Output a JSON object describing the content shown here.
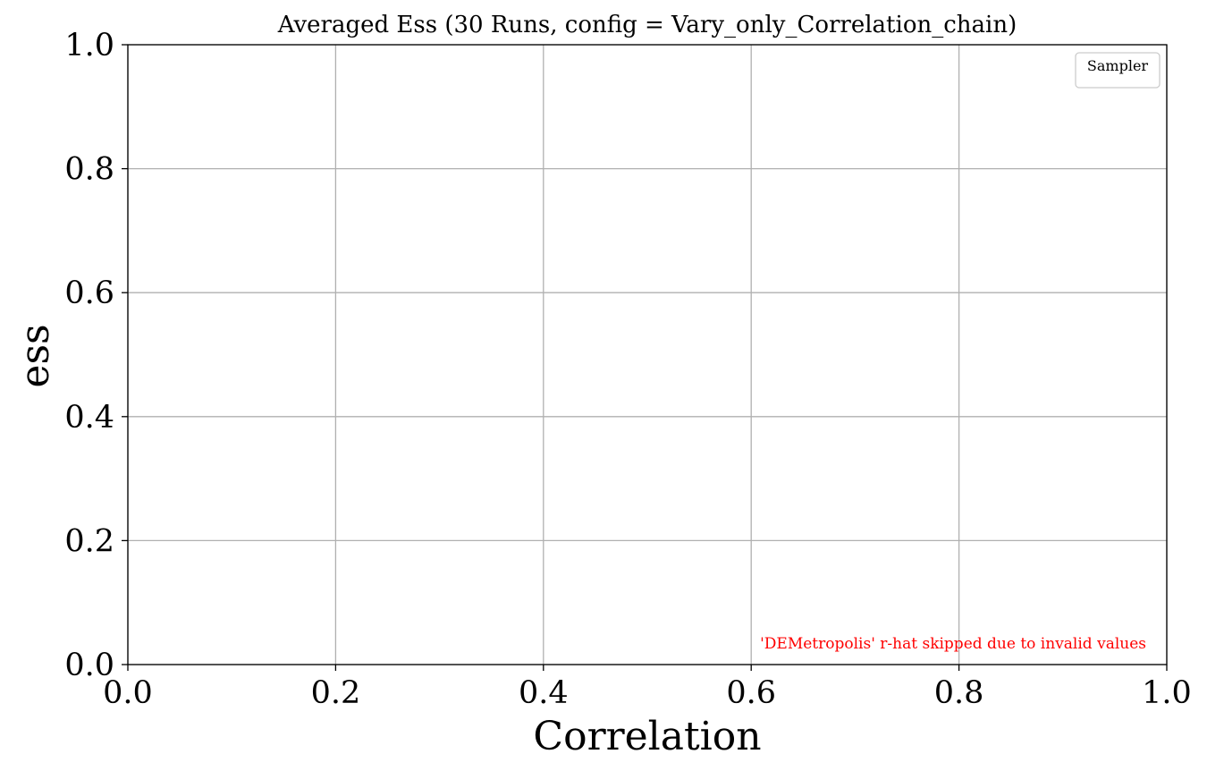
{
  "chart_data": {
    "type": "line",
    "title": "Averaged Ess (30 Runs, config = Vary_only_Correlation_chain)",
    "xlabel": "Correlation",
    "ylabel": "ess",
    "xlim": [
      0.0,
      1.0
    ],
    "ylim": [
      0.0,
      1.0
    ],
    "x_ticks": [
      "0.0",
      "0.2",
      "0.4",
      "0.6",
      "0.8",
      "1.0"
    ],
    "y_ticks": [
      "0.0",
      "0.2",
      "0.4",
      "0.6",
      "0.8",
      "1.0"
    ],
    "grid": true,
    "legend": {
      "title": "Sampler",
      "placement": "top-right",
      "entries": []
    },
    "series": [],
    "annotation": "'DEMetropolis' r-hat skipped due to invalid values",
    "colors": {
      "annotation": "#ff0000",
      "grid": "#b0b0b0",
      "axes": "#000000"
    }
  }
}
